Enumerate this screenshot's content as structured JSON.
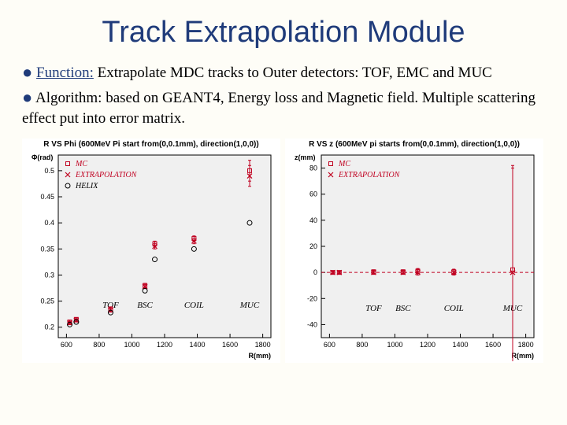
{
  "title": "Track Extrapolation Module",
  "bullets": {
    "b1_label": "Function:",
    "b1_text": " Extrapolate MDC tracks to Outer detectors: TOF, EMC and MUC",
    "b2_text": " Algorithm: based on  GEANT4, Energy loss and Magnetic field. Multiple scattering effect put into error matrix."
  },
  "plot_left": {
    "type": "scatter",
    "title": "R VS Phi (600MeV Pi start from(0,0.1mm), direction(1,0,0))",
    "xlabel": "R(mm)",
    "ylabel": "Φ(rad)",
    "xlim": [
      550,
      1850
    ],
    "ylim": [
      0.18,
      0.53
    ],
    "xticks": [
      600,
      800,
      1000,
      1200,
      1400,
      1600,
      1800
    ],
    "yticks": [
      0.2,
      0.25,
      0.3,
      0.35,
      0.4,
      0.45,
      0.5
    ],
    "bg": "#ffffff",
    "plot_bg": "#f0f0f0",
    "legend": [
      {
        "label": "MC",
        "color": "#c00020",
        "marker": "square"
      },
      {
        "label": "EXTRAPOLATION",
        "color": "#c00020",
        "marker": "x"
      },
      {
        "label": "HELIX",
        "color": "#000000",
        "marker": "circle"
      }
    ],
    "regions": [
      {
        "label": "TOF",
        "x": 870
      },
      {
        "label": "BSC",
        "x": 1080
      },
      {
        "label": "COIL",
        "x": 1380
      },
      {
        "label": "MUC",
        "x": 1720
      }
    ],
    "series": [
      {
        "name": "MC",
        "color": "#c00020",
        "marker": "square",
        "points": [
          [
            620,
            0.21
          ],
          [
            660,
            0.215
          ],
          [
            870,
            0.235
          ],
          [
            1080,
            0.28
          ],
          [
            1140,
            0.36
          ],
          [
            1380,
            0.37
          ],
          [
            1720,
            0.5
          ]
        ],
        "yerr": [
          0.003,
          0.003,
          0.004,
          0.004,
          0.005,
          0.005,
          0.02
        ]
      },
      {
        "name": "EXTRAPOLATION",
        "color": "#c00020",
        "marker": "x",
        "points": [
          [
            620,
            0.208
          ],
          [
            660,
            0.213
          ],
          [
            870,
            0.233
          ],
          [
            1080,
            0.278
          ],
          [
            1140,
            0.355
          ],
          [
            1380,
            0.365
          ],
          [
            1720,
            0.49
          ]
        ],
        "yerr": [
          0.003,
          0.003,
          0.004,
          0.004,
          0.005,
          0.005,
          0.02
        ]
      },
      {
        "name": "HELIX",
        "color": "#000000",
        "marker": "circle",
        "points": [
          [
            620,
            0.205
          ],
          [
            660,
            0.21
          ],
          [
            870,
            0.228
          ],
          [
            1080,
            0.27
          ],
          [
            1140,
            0.33
          ],
          [
            1380,
            0.35
          ],
          [
            1720,
            0.4
          ]
        ],
        "yerr": [
          0,
          0,
          0,
          0,
          0,
          0,
          0
        ]
      }
    ]
  },
  "plot_right": {
    "type": "scatter",
    "title": "R VS z (600MeV pi starts from(0,0.1mm), direction(1,0,0))",
    "xlabel": "R(mm)",
    "ylabel": "z(mm)",
    "xlim": [
      550,
      1850
    ],
    "ylim": [
      -50,
      90
    ],
    "xticks": [
      600,
      800,
      1000,
      1200,
      1400,
      1600,
      1800
    ],
    "yticks": [
      -40,
      -20,
      0,
      20,
      40,
      60,
      80
    ],
    "bg": "#ffffff",
    "plot_bg": "#f0f0f0",
    "zero_line_color": "#c00020",
    "legend": [
      {
        "label": "MC",
        "color": "#c00020",
        "marker": "square"
      },
      {
        "label": "EXTRAPOLATION",
        "color": "#c00020",
        "marker": "x"
      }
    ],
    "regions": [
      {
        "label": "TOF",
        "x": 870
      },
      {
        "label": "BSC",
        "x": 1050
      },
      {
        "label": "COIL",
        "x": 1360
      },
      {
        "label": "MUC",
        "x": 1720
      }
    ],
    "series": [
      {
        "name": "MC",
        "color": "#c00020",
        "marker": "square",
        "points": [
          [
            620,
            0
          ],
          [
            660,
            0
          ],
          [
            870,
            0.5
          ],
          [
            1050,
            0.5
          ],
          [
            1140,
            1
          ],
          [
            1360,
            0.5
          ],
          [
            1720,
            2
          ]
        ],
        "yerr": [
          1,
          1,
          1.5,
          1.5,
          2,
          2,
          80
        ]
      },
      {
        "name": "EXTRAPOLATION",
        "color": "#c00020",
        "marker": "x",
        "points": [
          [
            620,
            0
          ],
          [
            660,
            0
          ],
          [
            870,
            0
          ],
          [
            1050,
            0
          ],
          [
            1140,
            0
          ],
          [
            1360,
            0
          ],
          [
            1720,
            0
          ]
        ],
        "yerr": [
          1,
          1,
          1.5,
          1.5,
          2,
          2,
          80
        ]
      }
    ]
  }
}
